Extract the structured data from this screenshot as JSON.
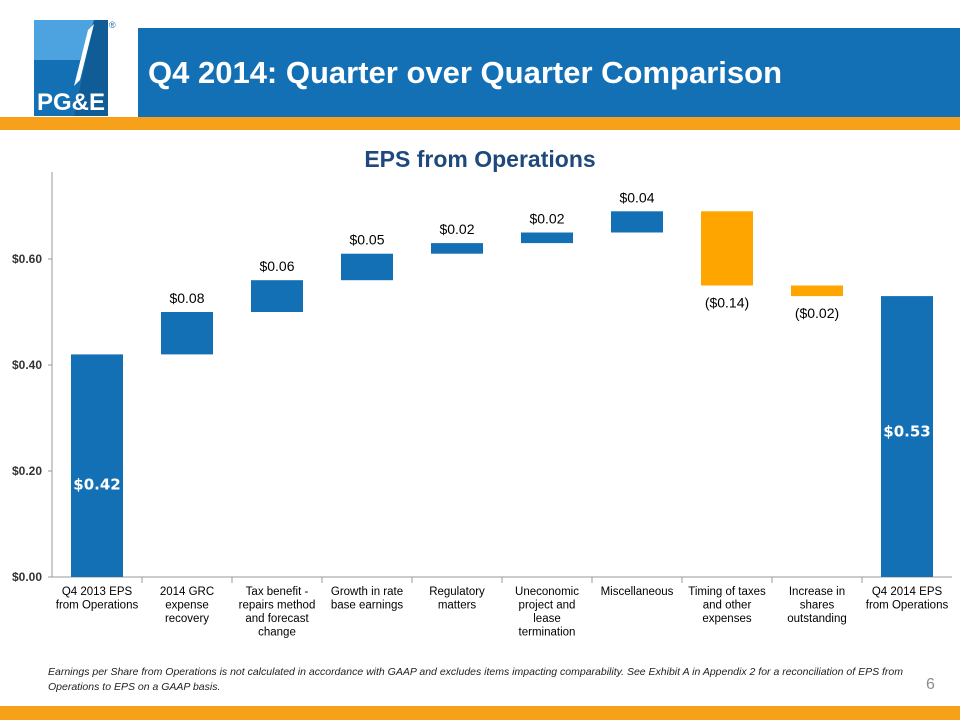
{
  "slide": {
    "title": "Q4 2014: Quarter over Quarter Comparison",
    "logo_text": "PG&E",
    "logo_mark": "®",
    "footnote": "Earnings per Share from Operations is not calculated in accordance with GAAP and excludes items impacting comparability.  See Exhibit A  in Appendix 2 for a reconciliation of EPS from Operations to EPS on a GAAP basis.",
    "page_number": "6"
  },
  "colors": {
    "brand_blue": "#1470b5",
    "accent_orange": "#f7a11a",
    "bar_blue": "#1470b5",
    "bar_orange": "#ffa500",
    "title_navy": "#1f497d"
  },
  "chart_data": {
    "type": "bar",
    "subtype": "waterfall",
    "title": "EPS from Operations",
    "ylim": [
      0,
      0.75
    ],
    "yticks": [
      0,
      0.2,
      0.4,
      0.6
    ],
    "ytick_labels": [
      "$0.00",
      "$0.20",
      "$0.40",
      "$0.60"
    ],
    "grid": false,
    "categories": [
      [
        "Q4 2013 EPS",
        "from Operations"
      ],
      [
        "2014 GRC",
        "expense",
        "recovery"
      ],
      [
        "Tax benefit -",
        "repairs method",
        "and forecast",
        "change"
      ],
      [
        "Growth in rate",
        "base earnings"
      ],
      [
        "Regulatory",
        "matters"
      ],
      [
        "Uneconomic",
        "project and",
        "lease",
        "termination"
      ],
      [
        "Miscellaneous"
      ],
      [
        "Timing of taxes",
        "and other",
        "expenses"
      ],
      [
        "Increase in",
        "shares",
        "outstanding"
      ],
      [
        "Q4 2014 EPS",
        "from Operations"
      ]
    ],
    "bars": [
      {
        "kind": "total",
        "start": 0,
        "end": 0.42,
        "label": "$0.42",
        "color": "#1470b5"
      },
      {
        "kind": "delta",
        "start": 0.42,
        "end": 0.5,
        "label": "$0.08",
        "color": "#1470b5"
      },
      {
        "kind": "delta",
        "start": 0.5,
        "end": 0.56,
        "label": "$0.06",
        "color": "#1470b5"
      },
      {
        "kind": "delta",
        "start": 0.56,
        "end": 0.61,
        "label": "$0.05",
        "color": "#1470b5"
      },
      {
        "kind": "delta",
        "start": 0.61,
        "end": 0.63,
        "label": "$0.02",
        "color": "#1470b5"
      },
      {
        "kind": "delta",
        "start": 0.63,
        "end": 0.65,
        "label": "$0.02",
        "color": "#1470b5"
      },
      {
        "kind": "delta",
        "start": 0.65,
        "end": 0.69,
        "label": "$0.04",
        "color": "#1470b5"
      },
      {
        "kind": "delta",
        "start": 0.69,
        "end": 0.55,
        "label": "($0.14)",
        "color": "#ffa500"
      },
      {
        "kind": "delta",
        "start": 0.55,
        "end": 0.53,
        "label": "($0.02)",
        "color": "#ffa500"
      },
      {
        "kind": "total",
        "start": 0,
        "end": 0.53,
        "label": "$0.53",
        "color": "#1470b5"
      }
    ]
  }
}
